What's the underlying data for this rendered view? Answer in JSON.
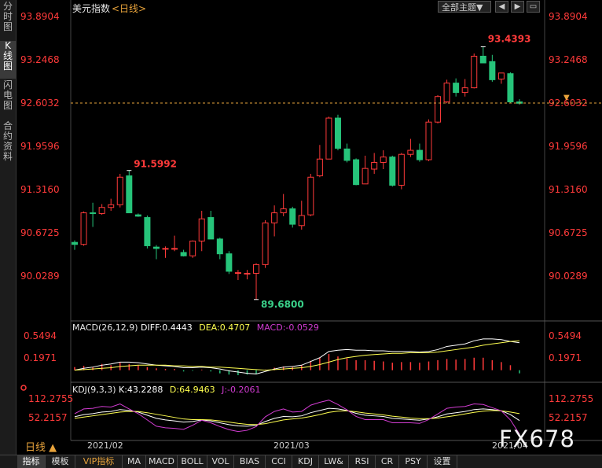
{
  "header": {
    "title": "美元指数",
    "period_tag": "<日线>",
    "theme_button": "全部主题▼",
    "tools": [
      "◀",
      "▶",
      "▭"
    ]
  },
  "left_tabs": [
    {
      "label": "分时图",
      "active": false
    },
    {
      "label": "K线图",
      "active": true
    },
    {
      "label": "闪电图",
      "active": false
    },
    {
      "label": "合约资料",
      "active": false
    }
  ],
  "main_axis": {
    "ticks": [
      "93.8904",
      "93.2468",
      "92.6032",
      "91.9596",
      "91.3160",
      "90.6725",
      "90.0289"
    ],
    "current_price": "92.6032"
  },
  "annotations": {
    "high_1": "91.5992",
    "high_2": "93.4393",
    "low_1": "89.6800"
  },
  "macd": {
    "label": "MACD(26,12,9)",
    "diff": "DIFF:0.4443",
    "dea": "DEA:0.4707",
    "macd": "MACD:-0.0529",
    "ticks": [
      "0.5494",
      "0.1971"
    ]
  },
  "kdj": {
    "label": "KDJ(9,3,3)",
    "k": "K:43.2288",
    "d": "D:64.9463",
    "j": "J:-0.2061",
    "ticks": [
      "112.2755",
      "52.2157"
    ]
  },
  "x_axis": {
    "dates": [
      "2021/02",
      "2021/03",
      "2021/04"
    ]
  },
  "period_selector": "日线 ▲",
  "watermark": "FX678",
  "bottom_tabs": [
    "指标",
    "模板",
    "VIP指标",
    "MA",
    "MACD",
    "BOLL",
    "VOL",
    "BIAS",
    "CCI",
    "KDJ",
    "LW&",
    "RSI",
    "CR",
    "PSY",
    "设置"
  ],
  "colors": {
    "up": "#ff3a3a",
    "down": "#26c47a",
    "axis_text": "#ff3a3a",
    "diff_line": "#ffffff",
    "dea_line": "#ffff50",
    "j_line": "#d23cd2"
  },
  "chart_data": {
    "type": "candlestick",
    "candles": [
      {
        "o": 90.53,
        "h": 90.56,
        "l": 90.42,
        "c": 90.5
      },
      {
        "o": 90.5,
        "h": 90.99,
        "l": 90.48,
        "c": 90.97
      },
      {
        "o": 90.97,
        "h": 91.12,
        "l": 90.76,
        "c": 90.96
      },
      {
        "o": 90.96,
        "h": 91.1,
        "l": 90.94,
        "c": 91.05
      },
      {
        "o": 91.05,
        "h": 91.18,
        "l": 91.0,
        "c": 91.09
      },
      {
        "o": 91.09,
        "h": 91.55,
        "l": 91.05,
        "c": 91.5
      },
      {
        "o": 91.52,
        "h": 91.6,
        "l": 90.97,
        "c": 90.97
      },
      {
        "o": 90.94,
        "h": 90.96,
        "l": 90.91,
        "c": 90.92
      },
      {
        "o": 90.9,
        "h": 90.93,
        "l": 90.44,
        "c": 90.48
      },
      {
        "o": 90.46,
        "h": 90.49,
        "l": 90.28,
        "c": 90.44
      },
      {
        "o": 90.44,
        "h": 90.47,
        "l": 90.3,
        "c": 90.44
      },
      {
        "o": 90.44,
        "h": 90.63,
        "l": 90.4,
        "c": 90.44
      },
      {
        "o": 90.38,
        "h": 90.42,
        "l": 90.32,
        "c": 90.33
      },
      {
        "o": 90.33,
        "h": 90.56,
        "l": 90.3,
        "c": 90.55
      },
      {
        "o": 90.55,
        "h": 91.0,
        "l": 90.4,
        "c": 90.88
      },
      {
        "o": 90.9,
        "h": 91.0,
        "l": 90.58,
        "c": 90.58
      },
      {
        "o": 90.58,
        "h": 90.6,
        "l": 90.28,
        "c": 90.36
      },
      {
        "o": 90.36,
        "h": 90.4,
        "l": 90.06,
        "c": 90.1
      },
      {
        "o": 90.08,
        "h": 90.12,
        "l": 89.97,
        "c": 90.08
      },
      {
        "o": 90.06,
        "h": 90.12,
        "l": 89.98,
        "c": 90.07
      },
      {
        "o": 90.07,
        "h": 90.22,
        "l": 89.68,
        "c": 90.2
      },
      {
        "o": 90.2,
        "h": 90.86,
        "l": 90.15,
        "c": 90.82
      },
      {
        "o": 90.82,
        "h": 91.08,
        "l": 90.62,
        "c": 90.97
      },
      {
        "o": 90.97,
        "h": 91.25,
        "l": 90.92,
        "c": 91.03
      },
      {
        "o": 91.03,
        "h": 91.06,
        "l": 90.75,
        "c": 90.8
      },
      {
        "o": 90.78,
        "h": 91.15,
        "l": 90.72,
        "c": 90.93
      },
      {
        "o": 90.94,
        "h": 91.55,
        "l": 90.92,
        "c": 91.5
      },
      {
        "o": 91.52,
        "h": 91.98,
        "l": 91.5,
        "c": 91.77
      },
      {
        "o": 91.77,
        "h": 92.4,
        "l": 91.77,
        "c": 92.38
      },
      {
        "o": 92.38,
        "h": 92.43,
        "l": 91.9,
        "c": 91.93
      },
      {
        "o": 91.92,
        "h": 92.0,
        "l": 91.72,
        "c": 91.75
      },
      {
        "o": 91.76,
        "h": 91.78,
        "l": 91.38,
        "c": 91.39
      },
      {
        "o": 91.4,
        "h": 91.82,
        "l": 91.4,
        "c": 91.63
      },
      {
        "o": 91.62,
        "h": 91.86,
        "l": 91.55,
        "c": 91.72
      },
      {
        "o": 91.72,
        "h": 91.9,
        "l": 91.62,
        "c": 91.8
      },
      {
        "o": 91.8,
        "h": 91.82,
        "l": 91.36,
        "c": 91.38
      },
      {
        "o": 91.38,
        "h": 91.86,
        "l": 91.32,
        "c": 91.84
      },
      {
        "o": 91.84,
        "h": 92.07,
        "l": 91.8,
        "c": 91.9
      },
      {
        "o": 91.9,
        "h": 92.0,
        "l": 91.73,
        "c": 91.76
      },
      {
        "o": 91.76,
        "h": 92.36,
        "l": 91.74,
        "c": 92.32
      },
      {
        "o": 92.32,
        "h": 92.72,
        "l": 92.3,
        "c": 92.7
      },
      {
        "o": 92.62,
        "h": 92.95,
        "l": 92.6,
        "c": 92.9
      },
      {
        "o": 92.9,
        "h": 92.97,
        "l": 92.7,
        "c": 92.76
      },
      {
        "o": 92.76,
        "h": 92.96,
        "l": 92.7,
        "c": 92.83
      },
      {
        "o": 92.83,
        "h": 93.34,
        "l": 92.82,
        "c": 93.3
      },
      {
        "o": 93.3,
        "h": 93.44,
        "l": 93.2,
        "c": 93.2
      },
      {
        "o": 93.22,
        "h": 93.32,
        "l": 92.92,
        "c": 92.95
      },
      {
        "o": 92.96,
        "h": 93.05,
        "l": 92.89,
        "c": 93.05
      },
      {
        "o": 93.04,
        "h": 93.06,
        "l": 92.6,
        "c": 92.62
      },
      {
        "o": 92.62,
        "h": 92.66,
        "l": 92.58,
        "c": 92.6
      }
    ],
    "macd_hist": [
      0.05,
      0.07,
      0.05,
      0.1,
      0.08,
      0.12,
      0.1,
      0.08,
      0.05,
      0.03,
      0.02,
      0.02,
      -0.02,
      -0.01,
      0.01,
      -0.02,
      -0.05,
      -0.07,
      -0.08,
      -0.07,
      -0.06,
      0.01,
      0.04,
      0.06,
      0.05,
      0.08,
      0.15,
      0.2,
      0.26,
      0.22,
      0.19,
      0.16,
      0.16,
      0.15,
      0.14,
      0.12,
      0.13,
      0.13,
      0.12,
      0.14,
      0.16,
      0.18,
      0.17,
      0.18,
      0.2,
      0.2,
      0.16,
      0.13,
      0.08,
      -0.05
    ],
    "diff": [
      0.0,
      0.03,
      0.05,
      0.08,
      0.1,
      0.13,
      0.13,
      0.12,
      0.1,
      0.08,
      0.07,
      0.06,
      0.04,
      0.04,
      0.05,
      0.04,
      0.02,
      -0.01,
      -0.03,
      -0.05,
      -0.06,
      -0.02,
      0.02,
      0.05,
      0.06,
      0.08,
      0.14,
      0.2,
      0.3,
      0.32,
      0.33,
      0.32,
      0.32,
      0.31,
      0.31,
      0.3,
      0.3,
      0.3,
      0.29,
      0.3,
      0.33,
      0.38,
      0.4,
      0.42,
      0.47,
      0.5,
      0.5,
      0.49,
      0.46,
      0.44
    ],
    "dea": [
      0.0,
      0.01,
      0.02,
      0.03,
      0.04,
      0.06,
      0.07,
      0.08,
      0.08,
      0.08,
      0.08,
      0.07,
      0.07,
      0.06,
      0.06,
      0.05,
      0.05,
      0.04,
      0.03,
      0.02,
      0.01,
      0.0,
      0.01,
      0.02,
      0.03,
      0.04,
      0.06,
      0.09,
      0.13,
      0.17,
      0.2,
      0.22,
      0.24,
      0.25,
      0.26,
      0.27,
      0.27,
      0.28,
      0.28,
      0.28,
      0.29,
      0.31,
      0.33,
      0.35,
      0.37,
      0.4,
      0.42,
      0.44,
      0.46,
      0.47
    ],
    "kdj_k": [
      55,
      62,
      65,
      70,
      72,
      78,
      75,
      70,
      60,
      50,
      45,
      42,
      38,
      40,
      45,
      42,
      36,
      30,
      26,
      25,
      28,
      40,
      50,
      56,
      55,
      58,
      68,
      75,
      82,
      80,
      75,
      66,
      60,
      58,
      56,
      50,
      48,
      46,
      44,
      48,
      55,
      64,
      68,
      72,
      78,
      80,
      78,
      74,
      62,
      43
    ],
    "kdj_d": [
      50,
      54,
      58,
      62,
      66,
      70,
      72,
      72,
      68,
      63,
      58,
      53,
      48,
      46,
      46,
      45,
      42,
      38,
      34,
      31,
      30,
      33,
      39,
      45,
      48,
      51,
      56,
      62,
      69,
      73,
      74,
      71,
      67,
      64,
      61,
      57,
      54,
      51,
      49,
      49,
      51,
      55,
      59,
      64,
      69,
      73,
      75,
      74,
      70,
      65
    ],
    "kdj_j": [
      65,
      80,
      82,
      88,
      86,
      96,
      80,
      65,
      45,
      25,
      20,
      18,
      15,
      28,
      44,
      36,
      24,
      14,
      8,
      12,
      24,
      55,
      72,
      80,
      70,
      72,
      92,
      101,
      108,
      94,
      77,
      56,
      46,
      46,
      46,
      36,
      36,
      36,
      34,
      46,
      64,
      82,
      86,
      88,
      96,
      94,
      84,
      74,
      45,
      -0.2
    ]
  }
}
